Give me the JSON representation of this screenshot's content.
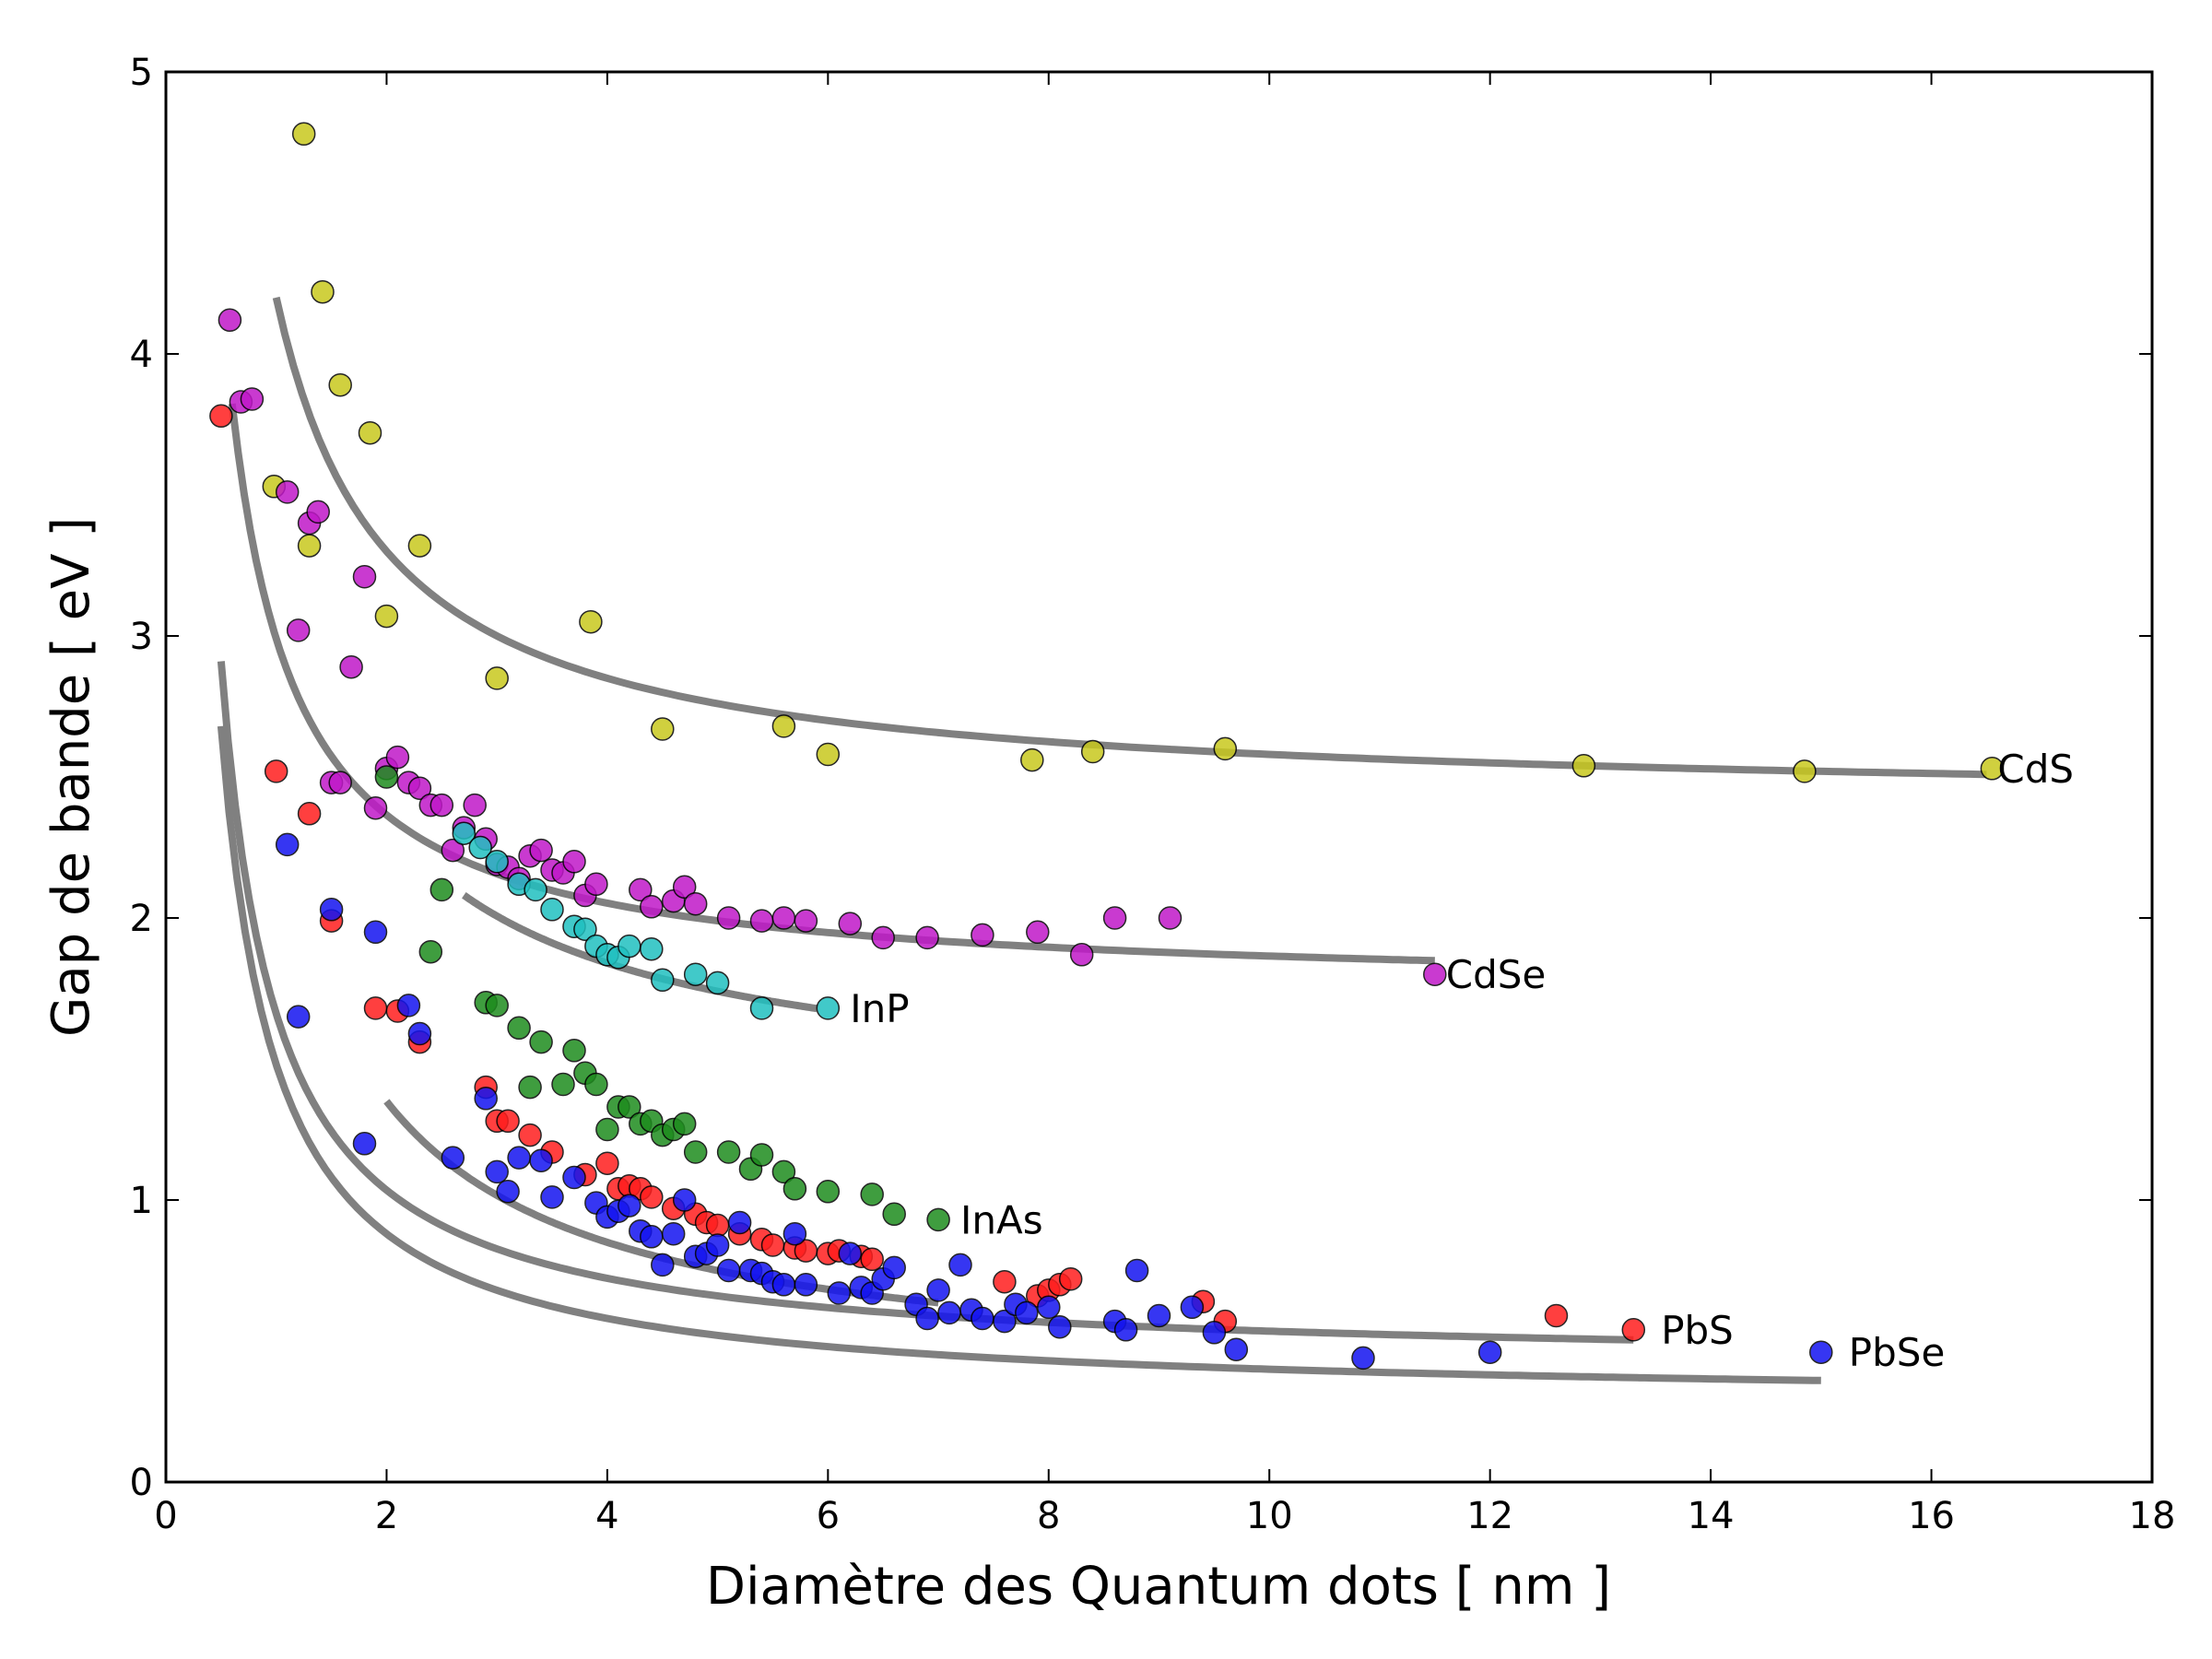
{
  "chart_data": {
    "type": "scatter",
    "title": "",
    "xlabel": "Diamètre des Quantum dots [ nm ]",
    "ylabel": "Gap de bande [ eV ]",
    "xlim": [
      0,
      18
    ],
    "ylim": [
      0,
      5
    ],
    "xticks": [
      "0",
      "2",
      "4",
      "6",
      "8",
      "10",
      "12",
      "14",
      "16",
      "18"
    ],
    "yticks": [
      "0",
      "1",
      "2",
      "3",
      "4",
      "5"
    ],
    "grid": false,
    "series": [
      {
        "name": "CdS",
        "color": "#c8c81e",
        "label_at": [
          16.6,
          2.53
        ],
        "fit_curve": {
          "a": 2.4,
          "b": 1.8,
          "x_range": [
            1.0,
            16.5
          ]
        },
        "points": [
          [
            1.25,
            4.78
          ],
          [
            1.42,
            4.22
          ],
          [
            1.58,
            3.89
          ],
          [
            1.85,
            3.72
          ],
          [
            0.98,
            3.53
          ],
          [
            1.3,
            3.32
          ],
          [
            2.3,
            3.32
          ],
          [
            2.0,
            3.07
          ],
          [
            3.85,
            3.05
          ],
          [
            3.0,
            2.85
          ],
          [
            4.5,
            2.67
          ],
          [
            5.6,
            2.68
          ],
          [
            6.0,
            2.58
          ],
          [
            7.85,
            2.56
          ],
          [
            8.4,
            2.59
          ],
          [
            9.6,
            2.6
          ],
          [
            12.85,
            2.54
          ],
          [
            14.85,
            2.52
          ],
          [
            16.55,
            2.53
          ]
        ]
      },
      {
        "name": "CdSe",
        "color": "#c018c8",
        "label_at": [
          11.6,
          1.8
        ],
        "fit_curve": {
          "a": 1.74,
          "b": 1.25,
          "x_range": [
            0.6,
            11.5
          ]
        },
        "points": [
          [
            0.58,
            4.12
          ],
          [
            0.68,
            3.83
          ],
          [
            0.78,
            3.84
          ],
          [
            1.1,
            3.51
          ],
          [
            1.3,
            3.4
          ],
          [
            1.38,
            3.44
          ],
          [
            1.8,
            3.21
          ],
          [
            1.2,
            3.02
          ],
          [
            1.68,
            2.89
          ],
          [
            1.5,
            2.48
          ],
          [
            1.58,
            2.48
          ],
          [
            1.9,
            2.39
          ],
          [
            2.0,
            2.53
          ],
          [
            2.1,
            2.57
          ],
          [
            2.2,
            2.48
          ],
          [
            2.3,
            2.46
          ],
          [
            2.4,
            2.4
          ],
          [
            2.5,
            2.4
          ],
          [
            2.6,
            2.24
          ],
          [
            2.7,
            2.32
          ],
          [
            2.8,
            2.4
          ],
          [
            2.9,
            2.28
          ],
          [
            3.0,
            2.19
          ],
          [
            3.1,
            2.18
          ],
          [
            3.2,
            2.14
          ],
          [
            3.3,
            2.22
          ],
          [
            3.4,
            2.24
          ],
          [
            3.5,
            2.17
          ],
          [
            3.6,
            2.16
          ],
          [
            3.7,
            2.2
          ],
          [
            3.8,
            2.08
          ],
          [
            3.9,
            2.12
          ],
          [
            4.3,
            2.1
          ],
          [
            4.4,
            2.04
          ],
          [
            4.6,
            2.06
          ],
          [
            4.7,
            2.11
          ],
          [
            4.8,
            2.05
          ],
          [
            5.1,
            2.0
          ],
          [
            5.4,
            1.99
          ],
          [
            5.6,
            2.0
          ],
          [
            5.8,
            1.99
          ],
          [
            6.2,
            1.98
          ],
          [
            6.5,
            1.93
          ],
          [
            6.9,
            1.93
          ],
          [
            7.4,
            1.94
          ],
          [
            7.9,
            1.95
          ],
          [
            8.3,
            1.87
          ],
          [
            8.6,
            2.0
          ],
          [
            9.1,
            2.0
          ],
          [
            11.5,
            1.8
          ]
        ]
      },
      {
        "name": "InP",
        "color": "#20c0c0",
        "label_at": [
          6.2,
          1.68
        ],
        "fit_curve": {
          "a": 1.34,
          "b": 2.0,
          "x_range": [
            2.7,
            5.9
          ]
        },
        "points": [
          [
            2.7,
            2.3
          ],
          [
            2.85,
            2.25
          ],
          [
            3.0,
            2.2
          ],
          [
            3.2,
            2.12
          ],
          [
            3.35,
            2.1
          ],
          [
            3.5,
            2.03
          ],
          [
            3.7,
            1.97
          ],
          [
            3.8,
            1.96
          ],
          [
            3.9,
            1.9
          ],
          [
            4.0,
            1.87
          ],
          [
            4.1,
            1.86
          ],
          [
            4.2,
            1.9
          ],
          [
            4.4,
            1.89
          ],
          [
            4.5,
            1.78
          ],
          [
            4.8,
            1.8
          ],
          [
            5.0,
            1.77
          ],
          [
            5.4,
            1.68
          ],
          [
            6.0,
            1.68
          ]
        ]
      },
      {
        "name": "InAs",
        "color": "#1e8c1e",
        "label_at": [
          7.2,
          0.93
        ],
        "fit_curve": {
          "a": 0.35,
          "b": 2.0,
          "x_range": [
            2.0,
            7.0
          ]
        },
        "points": [
          [
            2.0,
            2.5
          ],
          [
            2.5,
            2.1
          ],
          [
            2.4,
            1.88
          ],
          [
            2.9,
            1.7
          ],
          [
            3.0,
            1.69
          ],
          [
            3.2,
            1.61
          ],
          [
            3.4,
            1.56
          ],
          [
            3.3,
            1.4
          ],
          [
            3.6,
            1.41
          ],
          [
            3.7,
            1.53
          ],
          [
            3.8,
            1.45
          ],
          [
            3.9,
            1.41
          ],
          [
            4.0,
            1.25
          ],
          [
            4.1,
            1.33
          ],
          [
            4.2,
            1.33
          ],
          [
            4.3,
            1.27
          ],
          [
            4.4,
            1.28
          ],
          [
            4.5,
            1.23
          ],
          [
            4.6,
            1.25
          ],
          [
            4.7,
            1.27
          ],
          [
            4.8,
            1.17
          ],
          [
            5.1,
            1.17
          ],
          [
            5.3,
            1.11
          ],
          [
            5.4,
            1.16
          ],
          [
            5.6,
            1.1
          ],
          [
            5.7,
            1.04
          ],
          [
            6.0,
            1.03
          ],
          [
            6.4,
            1.02
          ],
          [
            6.6,
            0.95
          ],
          [
            7.0,
            0.93
          ]
        ]
      },
      {
        "name": "PbS",
        "color": "#ff1e1e",
        "label_at": [
          13.55,
          0.54
        ],
        "fit_curve": {
          "a": 0.41,
          "b": 1.25,
          "x_range": [
            0.5,
            13.3
          ]
        },
        "points": [
          [
            0.5,
            3.78
          ],
          [
            1.0,
            2.52
          ],
          [
            1.3,
            2.37
          ],
          [
            1.5,
            1.99
          ],
          [
            1.9,
            1.68
          ],
          [
            2.1,
            1.67
          ],
          [
            2.3,
            1.56
          ],
          [
            2.9,
            1.4
          ],
          [
            3.0,
            1.28
          ],
          [
            3.1,
            1.28
          ],
          [
            3.3,
            1.23
          ],
          [
            3.5,
            1.17
          ],
          [
            3.8,
            1.09
          ],
          [
            4.0,
            1.13
          ],
          [
            4.1,
            1.04
          ],
          [
            4.2,
            1.05
          ],
          [
            4.3,
            1.04
          ],
          [
            4.4,
            1.01
          ],
          [
            4.6,
            0.97
          ],
          [
            4.8,
            0.95
          ],
          [
            4.9,
            0.92
          ],
          [
            5.0,
            0.91
          ],
          [
            5.2,
            0.88
          ],
          [
            5.4,
            0.86
          ],
          [
            5.5,
            0.84
          ],
          [
            5.7,
            0.83
          ],
          [
            5.8,
            0.82
          ],
          [
            6.0,
            0.81
          ],
          [
            6.1,
            0.82
          ],
          [
            6.3,
            0.8
          ],
          [
            6.4,
            0.79
          ],
          [
            7.6,
            0.71
          ],
          [
            7.9,
            0.66
          ],
          [
            8.0,
            0.68
          ],
          [
            8.1,
            0.7
          ],
          [
            8.2,
            0.72
          ],
          [
            9.4,
            0.64
          ],
          [
            9.6,
            0.57
          ],
          [
            12.6,
            0.59
          ],
          [
            13.3,
            0.54
          ]
        ]
      },
      {
        "name": "PbSe",
        "color": "#1414f0",
        "label_at": [
          15.25,
          0.46
        ],
        "fit_curve": {
          "a": 0.28,
          "b": 1.2,
          "x_range": [
            0.5,
            15.0
          ]
        },
        "points": [
          [
            1.1,
            2.26
          ],
          [
            1.5,
            2.03
          ],
          [
            1.9,
            1.95
          ],
          [
            1.2,
            1.65
          ],
          [
            2.2,
            1.69
          ],
          [
            2.3,
            1.59
          ],
          [
            1.8,
            1.2
          ],
          [
            2.6,
            1.15
          ],
          [
            2.9,
            1.36
          ],
          [
            3.0,
            1.1
          ],
          [
            3.1,
            1.03
          ],
          [
            3.2,
            1.15
          ],
          [
            3.4,
            1.14
          ],
          [
            3.5,
            1.01
          ],
          [
            3.7,
            1.08
          ],
          [
            3.9,
            0.99
          ],
          [
            4.0,
            0.94
          ],
          [
            4.1,
            0.96
          ],
          [
            4.2,
            0.98
          ],
          [
            4.3,
            0.89
          ],
          [
            4.4,
            0.87
          ],
          [
            4.5,
            0.77
          ],
          [
            4.6,
            0.88
          ],
          [
            4.7,
            1.0
          ],
          [
            4.8,
            0.8
          ],
          [
            4.9,
            0.81
          ],
          [
            5.0,
            0.84
          ],
          [
            5.1,
            0.75
          ],
          [
            5.2,
            0.92
          ],
          [
            5.3,
            0.75
          ],
          [
            5.4,
            0.74
          ],
          [
            5.5,
            0.71
          ],
          [
            5.6,
            0.7
          ],
          [
            5.7,
            0.88
          ],
          [
            5.8,
            0.7
          ],
          [
            6.1,
            0.67
          ],
          [
            6.2,
            0.81
          ],
          [
            6.3,
            0.69
          ],
          [
            6.4,
            0.67
          ],
          [
            6.5,
            0.72
          ],
          [
            6.6,
            0.76
          ],
          [
            6.8,
            0.63
          ],
          [
            6.9,
            0.58
          ],
          [
            7.0,
            0.68
          ],
          [
            7.1,
            0.6
          ],
          [
            7.2,
            0.77
          ],
          [
            7.3,
            0.61
          ],
          [
            7.4,
            0.58
          ],
          [
            7.6,
            0.57
          ],
          [
            7.7,
            0.63
          ],
          [
            7.8,
            0.6
          ],
          [
            8.0,
            0.62
          ],
          [
            8.1,
            0.55
          ],
          [
            8.6,
            0.57
          ],
          [
            8.7,
            0.54
          ],
          [
            8.8,
            0.75
          ],
          [
            9.0,
            0.59
          ],
          [
            9.3,
            0.62
          ],
          [
            9.5,
            0.53
          ],
          [
            9.7,
            0.47
          ],
          [
            10.85,
            0.44
          ],
          [
            12.0,
            0.46
          ],
          [
            15.0,
            0.46
          ]
        ]
      }
    ]
  }
}
